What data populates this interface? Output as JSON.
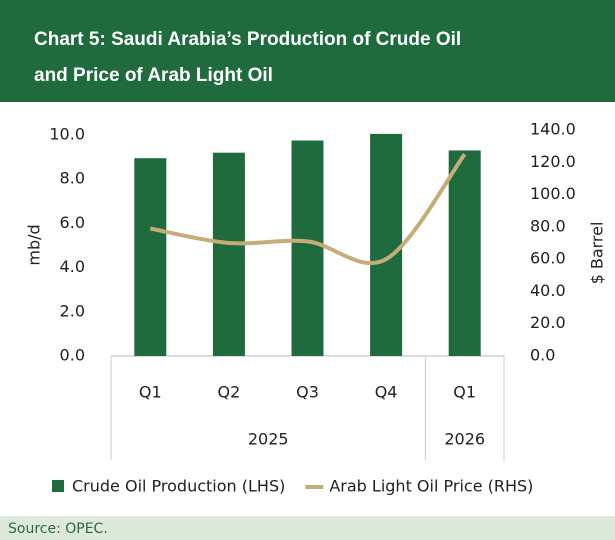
{
  "chart_data": {
    "type": "bar-line",
    "title": "Chart 5: Saudi Arabia’s Production of Crude Oil and Price of Arab Light Oil",
    "categories": [
      "Q1",
      "Q2",
      "Q3",
      "Q4",
      "Q1"
    ],
    "groups": [
      {
        "label": "2025",
        "count": 4
      },
      {
        "label": "2026",
        "count": 1
      }
    ],
    "series": [
      {
        "name": "Crude Oil Production (LHS)",
        "type": "bar",
        "color": "#1f6b3e",
        "values": [
          8.95,
          9.2,
          9.75,
          10.05,
          9.3
        ]
      },
      {
        "name": "Arab Light Oil Price (RHS)",
        "type": "line",
        "color": "#c4ad78",
        "axis": "y2",
        "values": [
          79,
          70,
          71,
          60,
          125
        ]
      }
    ],
    "ylabel": "mb/d",
    "y2label": "$ Barrel",
    "ylim": [
      0,
      10
    ],
    "yticks": [
      {
        "value": 0,
        "label": "0.0"
      },
      {
        "value": 2,
        "label": "2.0"
      },
      {
        "value": 4,
        "label": "4.0"
      },
      {
        "value": 6,
        "label": "6.0"
      },
      {
        "value": 8,
        "label": "8.0"
      },
      {
        "value": 10,
        "label": "10.0"
      }
    ],
    "y2lim": [
      0,
      140
    ],
    "y2ticks": [
      {
        "value": 0,
        "label": "0.0"
      },
      {
        "value": 20,
        "label": "20.0"
      },
      {
        "value": 40,
        "label": "40.0"
      },
      {
        "value": 60,
        "label": "60.0"
      },
      {
        "value": 80,
        "label": "80.0"
      },
      {
        "value": 100,
        "label": "100.0"
      },
      {
        "value": 120,
        "label": "120.0"
      },
      {
        "value": 140,
        "label": "140.0"
      }
    ],
    "source": "Source: OPEC."
  }
}
